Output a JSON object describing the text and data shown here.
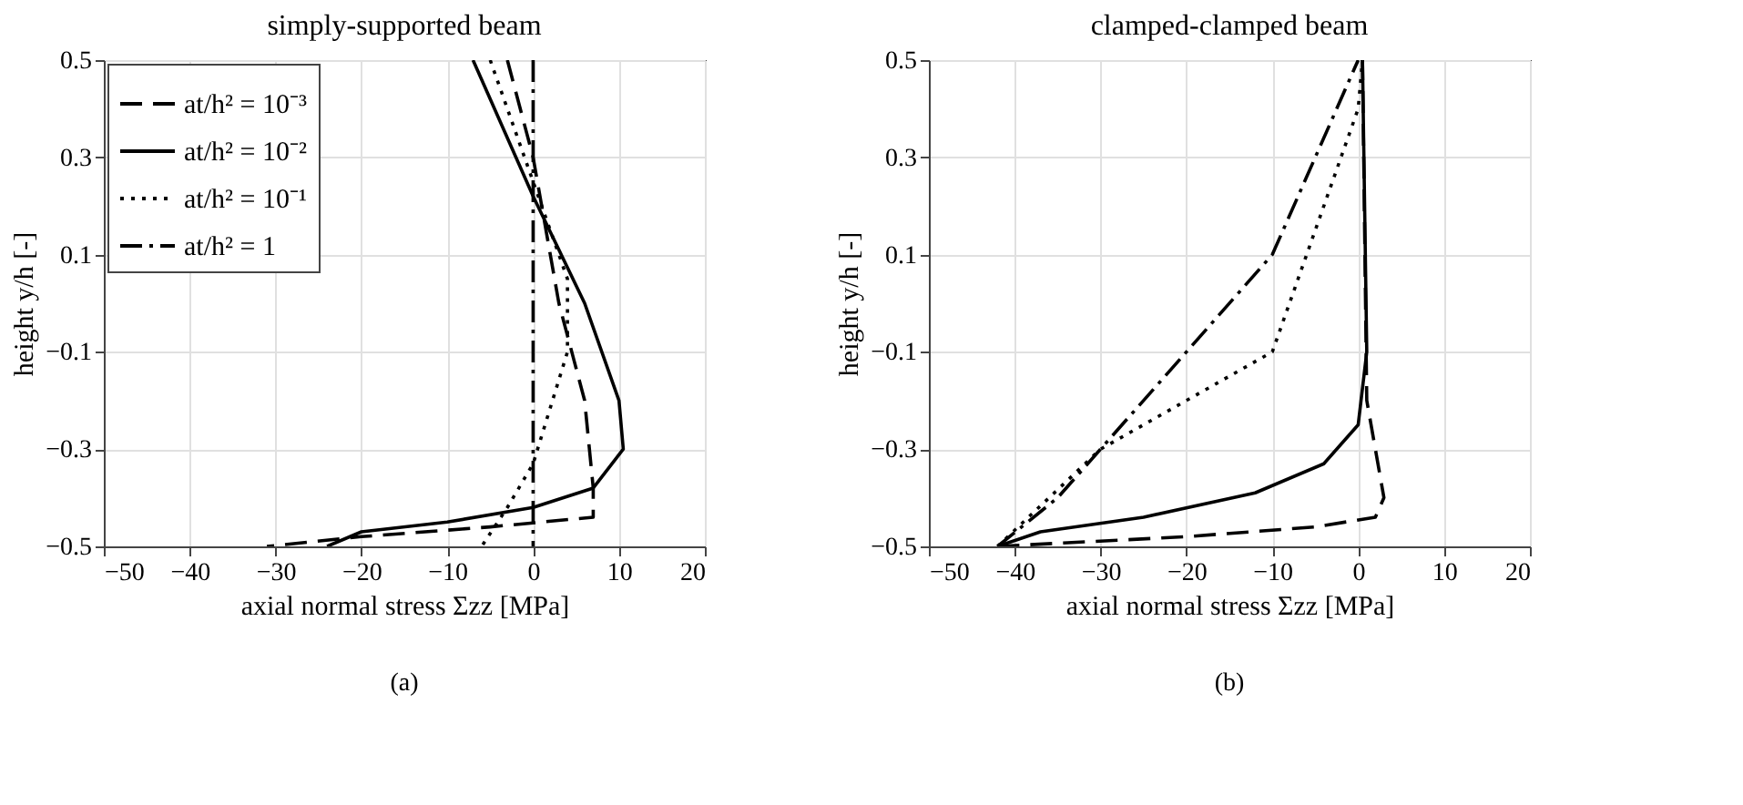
{
  "chart_data": [
    {
      "type": "line",
      "title": "simply-supported beam",
      "xlabel": "axial normal stress Σzz [MPa]",
      "ylabel": "height y/h [-]",
      "xlim": [
        -50,
        20
      ],
      "xticks": [
        -50,
        -40,
        -30,
        -20,
        -10,
        0,
        10,
        20
      ],
      "ylim": [
        -0.5,
        0.5
      ],
      "yticks": [
        -0.5,
        -0.3,
        -0.1,
        0.1,
        0.3,
        0.5
      ],
      "grid": true,
      "legend": "top left",
      "annotations": [
        "(a)"
      ],
      "series": [
        {
          "name": "at/h² = 10⁻³",
          "color": "#000000",
          "line_style": "dashed",
          "x": [
            -3,
            0,
            3,
            6,
            7,
            7,
            -5,
            -20,
            -31
          ],
          "values": [
            0.5,
            0.3,
            0,
            -0.2,
            -0.38,
            -0.44,
            -0.46,
            -0.48,
            -0.5
          ]
        },
        {
          "name": "at/h² = 10⁻²",
          "color": "#000000",
          "line_style": "solid",
          "x": [
            -7,
            0,
            6,
            10,
            10.5,
            7,
            0,
            -10,
            -20,
            -24
          ],
          "values": [
            0.5,
            0.22,
            0,
            -0.2,
            -0.3,
            -0.38,
            -0.42,
            -0.45,
            -0.47,
            -0.5
          ]
        },
        {
          "name": "at/h² = 10⁻¹",
          "color": "#000000",
          "line_style": "dotted",
          "x": [
            -5,
            0,
            4,
            4,
            0,
            -3,
            -6
          ],
          "values": [
            0.5,
            0.25,
            0.05,
            -0.1,
            -0.33,
            -0.42,
            -0.5
          ]
        },
        {
          "name": "at/h² = 1",
          "color": "#000000",
          "line_style": "dashdot",
          "x": [
            0,
            0
          ],
          "values": [
            0.5,
            -0.5
          ]
        }
      ]
    },
    {
      "type": "line",
      "title": "clamped-clamped beam",
      "xlabel": "axial normal stress Σzz [MPa]",
      "ylabel": "height y/h [-]",
      "xlim": [
        -50,
        20
      ],
      "xticks": [
        -50,
        -40,
        -30,
        -20,
        -10,
        0,
        10,
        20
      ],
      "ylim": [
        -0.5,
        0.5
      ],
      "yticks": [
        -0.5,
        -0.3,
        -0.1,
        0.1,
        0.3,
        0.5
      ],
      "grid": true,
      "legend": "top left",
      "annotations": [
        "(b)"
      ],
      "series": [
        {
          "name": "at/h² = 10⁻³",
          "color": "#000000",
          "line_style": "dashed",
          "x": [
            -42,
            -20,
            -5,
            2,
            3,
            1,
            0.5
          ],
          "values": [
            -0.5,
            -0.48,
            -0.46,
            -0.44,
            -0.4,
            -0.2,
            0.5
          ]
        },
        {
          "name": "at/h² = 10⁻²",
          "color": "#000000",
          "line_style": "solid",
          "x": [
            -42,
            -37,
            -25,
            -12,
            -4,
            0,
            1,
            0.5
          ],
          "values": [
            -0.5,
            -0.47,
            -0.44,
            -0.39,
            -0.33,
            -0.25,
            -0.1,
            0.5
          ]
        },
        {
          "name": "at/h² = 10⁻¹",
          "color": "#000000",
          "line_style": "dotted",
          "x": [
            -42,
            -30,
            -10,
            0,
            0.5
          ],
          "values": [
            -0.5,
            -0.3,
            -0.1,
            0.4,
            0.5
          ]
        },
        {
          "name": "at/h² = 1",
          "color": "#000000",
          "line_style": "dashdot",
          "x": [
            -42,
            -35,
            -20,
            -10,
            -5,
            0
          ],
          "values": [
            -0.5,
            -0.4,
            -0.1,
            0.1,
            0.3,
            0.5
          ]
        }
      ]
    }
  ]
}
